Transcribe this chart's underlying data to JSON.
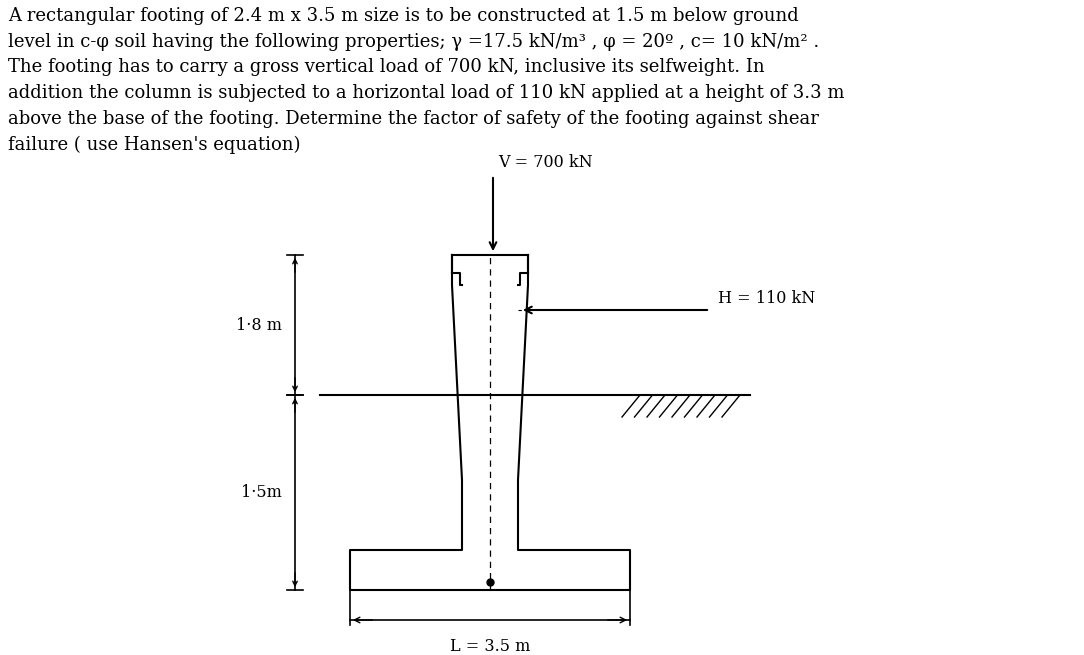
{
  "title_text": "A rectangular footing of 2.4 m x 3.5 m size is to be constructed at 1.5 m below ground\nlevel in c-φ soil having the following properties; γ =17.5 kN/m³ , φ = 20º , c= 10 kN/m² .\nThe footing has to carry a gross vertical load of 700 kN, inclusive its selfweight. In\naddition the column is subjected to a horizontal load of 110 kN applied at a height of 3.3 m\nabove the base of the footing. Determine the factor of safety of the footing against shear\nfailure ( use Hansen's equation)",
  "V_label": "V = 700 kN",
  "H_label": "H = 110 kN",
  "dim1_label": "1·8 m",
  "dim2_label": "1·5m",
  "L_label": "L = 3.5 m",
  "bg_color": "#ffffff",
  "line_color": "#000000",
  "text_color": "#000000",
  "font_size_title": 13.0,
  "font_size_labels": 11.5,
  "fig_width": 10.84,
  "fig_height": 6.55
}
